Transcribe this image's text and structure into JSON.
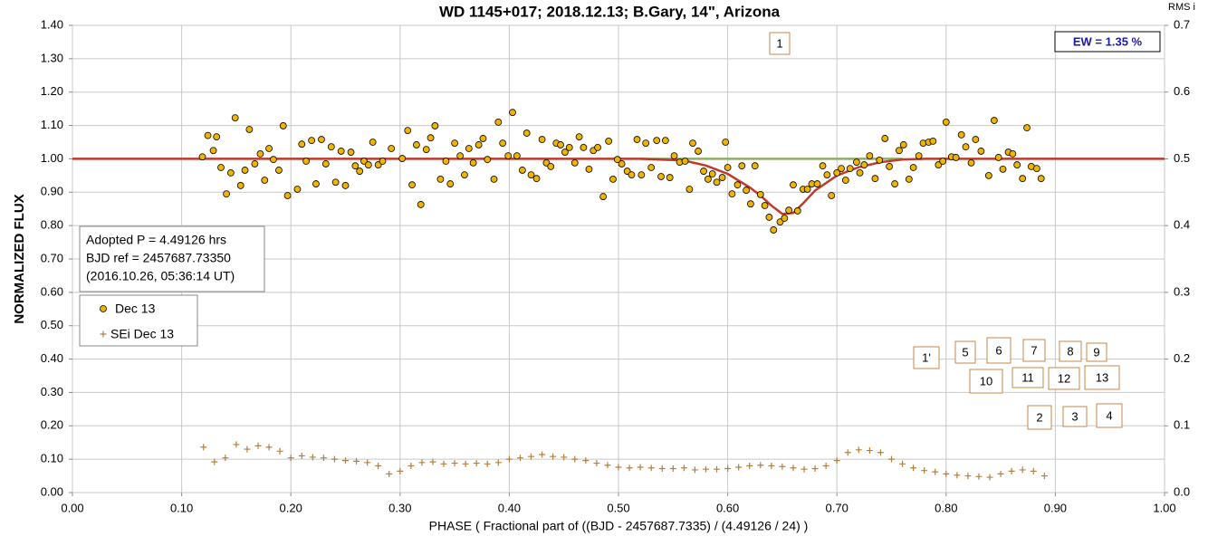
{
  "chart_data": {
    "type": "scatter",
    "title": "WD 1145+017; 2018.12.13; B.Gary, 14\", Arizona",
    "x_label": "PHASE ( Fractional part of ((BJD - 2457687.7335) / (4.49126 / 24) )",
    "y_label": "NORMALIZED FLUX",
    "y2_label": "RMS i",
    "xlim": [
      0,
      1
    ],
    "ylim": [
      0,
      1.4
    ],
    "y2lim": [
      0,
      0.7
    ],
    "grid": true,
    "xticks": [
      {
        "value": 0,
        "label": "0.00"
      },
      {
        "value": 0.1,
        "label": "0.10"
      },
      {
        "value": 0.2,
        "label": "0.20"
      },
      {
        "value": 0.3,
        "label": "0.30"
      },
      {
        "value": 0.4,
        "label": "0.40"
      },
      {
        "value": 0.5,
        "label": "0.50"
      },
      {
        "value": 0.6,
        "label": "0.60"
      },
      {
        "value": 0.7,
        "label": "0.70"
      },
      {
        "value": 0.8,
        "label": "0.80"
      },
      {
        "value": 0.9,
        "label": "0.90"
      },
      {
        "value": 1,
        "label": "1.00"
      }
    ],
    "yticks": [
      {
        "value": 0,
        "label": "0.00"
      },
      {
        "value": 0.1,
        "label": "0.10"
      },
      {
        "value": 0.2,
        "label": "0.20"
      },
      {
        "value": 0.3,
        "label": "0.30"
      },
      {
        "value": 0.4,
        "label": "0.40"
      },
      {
        "value": 0.5,
        "label": "0.50"
      },
      {
        "value": 0.6,
        "label": "0.60"
      },
      {
        "value": 0.7,
        "label": "0.70"
      },
      {
        "value": 0.8,
        "label": "0.80"
      },
      {
        "value": 0.9,
        "label": "0.90"
      },
      {
        "value": 1,
        "label": "1.00"
      },
      {
        "value": 1.1,
        "label": "1.10"
      },
      {
        "value": 1.2,
        "label": "1.20"
      },
      {
        "value": 1.3,
        "label": "1.30"
      },
      {
        "value": 1.4,
        "label": "1.40"
      }
    ],
    "y2ticks": [
      {
        "value": 0,
        "label": "0.0"
      },
      0.1,
      0.2,
      0.3,
      0.4,
      0.5,
      0.6,
      0.7
    ],
    "series": [
      {
        "name": "Dec 13",
        "style": "dot",
        "color": "#f0b400",
        "x": [
          0.119,
          0.124,
          0.129,
          0.132,
          0.136,
          0.141,
          0.145,
          0.149,
          0.154,
          0.158,
          0.162,
          0.167,
          0.172,
          0.176,
          0.18,
          0.184,
          0.189,
          0.193,
          0.197,
          0.206,
          0.21,
          0.214,
          0.219,
          0.223,
          0.228,
          0.232,
          0.237,
          0.241,
          0.246,
          0.25,
          0.255,
          0.259,
          0.263,
          0.267,
          0.271,
          0.275,
          0.28,
          0.284,
          0.292,
          0.302,
          0.307,
          0.311,
          0.315,
          0.319,
          0.324,
          0.328,
          0.332,
          0.337,
          0.342,
          0.346,
          0.35,
          0.355,
          0.359,
          0.363,
          0.367,
          0.372,
          0.376,
          0.38,
          0.386,
          0.39,
          0.394,
          0.399,
          0.403,
          0.407,
          0.412,
          0.416,
          0.42,
          0.425,
          0.43,
          0.434,
          0.438,
          0.443,
          0.447,
          0.451,
          0.455,
          0.46,
          0.464,
          0.468,
          0.473,
          0.477,
          0.481,
          0.486,
          0.491,
          0.495,
          0.499,
          0.503,
          0.508,
          0.512,
          0.517,
          0.521,
          0.525,
          0.53,
          0.535,
          0.539,
          0.543,
          0.547,
          0.551,
          0.556,
          0.561,
          0.565,
          0.568,
          0.573,
          0.578,
          0.582,
          0.586,
          0.59,
          0.595,
          0.598,
          0.6,
          0.604,
          0.609,
          0.613,
          0.617,
          0.621,
          0.625,
          0.63,
          0.634,
          0.638,
          0.642,
          0.648,
          0.652,
          0.656,
          0.66,
          0.664,
          0.669,
          0.673,
          0.677,
          0.682,
          0.687,
          0.691,
          0.695,
          0.7,
          0.704,
          0.708,
          0.712,
          0.718,
          0.721,
          0.725,
          0.73,
          0.735,
          0.739,
          0.744,
          0.748,
          0.753,
          0.757,
          0.761,
          0.766,
          0.77,
          0.775,
          0.779,
          0.784,
          0.788,
          0.793,
          0.797,
          0.8,
          0.805,
          0.809,
          0.814,
          0.818,
          0.823,
          0.827,
          0.832,
          0.839,
          0.844,
          0.848,
          0.852,
          0.857,
          0.861,
          0.865,
          0.87,
          0.874,
          0.878,
          0.883,
          0.887
        ],
        "values": [
          1.006,
          1.07,
          1.025,
          1.066,
          0.974,
          0.895,
          0.958,
          1.123,
          0.92,
          0.966,
          1.088,
          0.985,
          1.015,
          0.936,
          1.031,
          0.998,
          0.966,
          1.099,
          0.89,
          0.909,
          1.044,
          0.993,
          1.055,
          0.925,
          1.058,
          0.985,
          1.036,
          0.93,
          1.023,
          0.92,
          1.02,
          0.979,
          0.963,
          0.993,
          0.982,
          1.05,
          0.982,
          0.993,
          1.031,
          1.001,
          1.085,
          0.922,
          1.042,
          0.863,
          1.028,
          1.063,
          1.099,
          0.939,
          0.993,
          0.925,
          1.047,
          1.009,
          0.952,
          1.031,
          0.988,
          1.042,
          1.061,
          0.998,
          0.939,
          1.11,
          1.047,
          1.009,
          1.139,
          1.009,
          0.966,
          1.077,
          0.952,
          0.941,
          1.058,
          0.988,
          0.977,
          1.047,
          1.042,
          1.02,
          1.034,
          0.988,
          1.066,
          1.034,
          0.969,
          1.025,
          1.034,
          0.887,
          1.053,
          0.939,
          0.998,
          0.985,
          0.963,
          0.952,
          1.058,
          0.952,
          1.047,
          0.974,
          1.055,
          0.947,
          1.055,
          0.944,
          1.009,
          0.99,
          0.993,
          0.909,
          1.047,
          1.023,
          0.963,
          0.939,
          0.955,
          0.93,
          0.944,
          1.05,
          0.974,
          0.895,
          0.922,
          0.979,
          0.906,
          0.865,
          0.979,
          0.893,
          0.86,
          0.825,
          0.787,
          0.811,
          0.822,
          0.846,
          0.922,
          0.844,
          0.909,
          0.909,
          0.925,
          0.925,
          0.979,
          0.952,
          0.89,
          0.958,
          0.971,
          0.936,
          0.971,
          0.99,
          0.958,
          0.982,
          1.009,
          0.941,
          0.996,
          1.061,
          0.977,
          0.925,
          1.025,
          1.042,
          0.939,
          0.974,
          1.009,
          1.047,
          1.05,
          1.053,
          0.982,
          0.993,
          1.11,
          1.006,
          1.004,
          1.072,
          1.036,
          0.988,
          1.058,
          1.023,
          0.95,
          1.115,
          1.004,
          0.969,
          1.02,
          1.015,
          0.982,
          0.941,
          1.093,
          0.977,
          0.971,
          0.941
        ]
      },
      {
        "name": "SEi Dec 13",
        "style": "plus",
        "axis": "y2",
        "color": "#b08040",
        "x": [
          0.12,
          0.13,
          0.14,
          0.15,
          0.16,
          0.17,
          0.18,
          0.19,
          0.2,
          0.21,
          0.22,
          0.23,
          0.24,
          0.25,
          0.26,
          0.27,
          0.28,
          0.29,
          0.3,
          0.31,
          0.32,
          0.33,
          0.34,
          0.35,
          0.36,
          0.37,
          0.38,
          0.39,
          0.4,
          0.41,
          0.42,
          0.43,
          0.44,
          0.45,
          0.46,
          0.47,
          0.48,
          0.49,
          0.5,
          0.51,
          0.52,
          0.53,
          0.54,
          0.55,
          0.56,
          0.57,
          0.58,
          0.59,
          0.6,
          0.61,
          0.62,
          0.63,
          0.64,
          0.65,
          0.66,
          0.67,
          0.68,
          0.69,
          0.7,
          0.71,
          0.72,
          0.73,
          0.74,
          0.75,
          0.76,
          0.77,
          0.78,
          0.79,
          0.8,
          0.81,
          0.82,
          0.83,
          0.84,
          0.85,
          0.86,
          0.87,
          0.88,
          0.89
        ],
        "values": [
          0.068,
          0.046,
          0.052,
          0.072,
          0.065,
          0.07,
          0.068,
          0.062,
          0.052,
          0.055,
          0.053,
          0.052,
          0.05,
          0.048,
          0.047,
          0.045,
          0.04,
          0.028,
          0.032,
          0.04,
          0.045,
          0.046,
          0.043,
          0.044,
          0.043,
          0.044,
          0.043,
          0.045,
          0.05,
          0.052,
          0.054,
          0.057,
          0.054,
          0.053,
          0.05,
          0.048,
          0.044,
          0.041,
          0.038,
          0.037,
          0.038,
          0.037,
          0.036,
          0.036,
          0.037,
          0.034,
          0.035,
          0.035,
          0.036,
          0.038,
          0.04,
          0.041,
          0.04,
          0.039,
          0.037,
          0.035,
          0.036,
          0.04,
          0.048,
          0.06,
          0.064,
          0.063,
          0.06,
          0.05,
          0.043,
          0.037,
          0.033,
          0.031,
          0.028,
          0.026,
          0.025,
          0.024,
          0.023,
          0.028,
          0.032,
          0.034,
          0.032,
          0.025
        ]
      },
      {
        "style": "line",
        "color": "#8faa6a",
        "x": [
          0.52,
          0.76
        ],
        "values": [
          1,
          1
        ]
      },
      {
        "style": "line",
        "color": "#c0392b",
        "x": [
          0,
          0.52,
          0.56,
          0.58,
          0.6,
          0.62,
          0.63,
          0.64,
          0.65,
          0.66,
          0.67,
          0.68,
          0.7,
          0.72,
          0.74,
          0.76,
          0.78,
          1
        ],
        "values": [
          1,
          1,
          0.995,
          0.98,
          0.955,
          0.915,
          0.89,
          0.86,
          0.835,
          0.838,
          0.87,
          0.905,
          0.95,
          0.975,
          0.99,
          0.998,
          1,
          1
        ]
      }
    ],
    "info_box": [
      "Adopted P = 4.49126 hrs",
      "BJD ref = 2457687.73350",
      "(2016.10.26, 05:36:14 UT)"
    ],
    "ew_label": "EW =  1.35 %",
    "annotations": [
      "1",
      "1'",
      "5",
      "6",
      "7",
      "8",
      "9",
      "10",
      "11",
      "12",
      "13",
      "2",
      "3",
      "4"
    ]
  }
}
